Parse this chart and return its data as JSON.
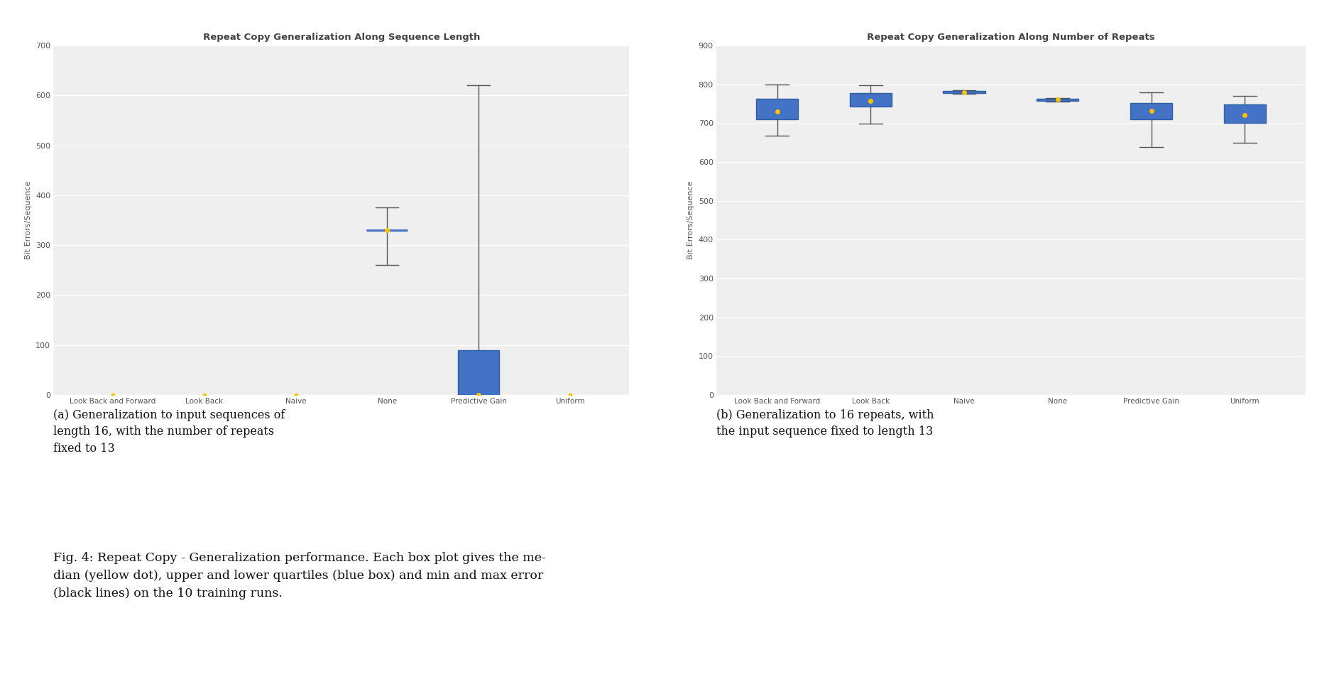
{
  "plot1": {
    "title": "Repeat Copy Generalization Along Sequence Length",
    "xlabel": "",
    "ylabel": "Bit Errors/Sequence",
    "ylim": [
      0,
      700
    ],
    "yticks": [
      0,
      100,
      200,
      300,
      400,
      500,
      600,
      700
    ],
    "categories": [
      "Look Back and Forward",
      "Look Back",
      "Naive",
      "None",
      "Predictive Gain",
      "Uniform"
    ],
    "median": [
      0,
      0,
      0,
      330,
      0,
      0
    ],
    "q1": [
      0,
      0,
      0,
      330,
      0,
      0
    ],
    "q3": [
      0,
      0,
      0,
      330,
      90,
      0
    ],
    "whisker_low": [
      0,
      0,
      0,
      260,
      0,
      0
    ],
    "whisker_high": [
      0,
      0,
      0,
      375,
      620,
      0
    ],
    "has_box": [
      false,
      false,
      false,
      false,
      true,
      false
    ],
    "has_whisker": [
      false,
      false,
      false,
      true,
      true,
      false
    ],
    "has_line": [
      false,
      false,
      false,
      true,
      false,
      false
    ],
    "all_zero": [
      true,
      true,
      true,
      false,
      false,
      true
    ]
  },
  "plot2": {
    "title": "Repeat Copy Generalization Along Number of Repeats",
    "xlabel": "",
    "ylabel": "Bit Errors/Sequence",
    "ylim": [
      0,
      900
    ],
    "yticks": [
      0,
      100,
      200,
      300,
      400,
      500,
      600,
      700,
      800,
      900
    ],
    "categories": [
      "Look Back and Forward",
      "Look Back",
      "Naive",
      "None",
      "Predictive Gain",
      "Uniform"
    ],
    "median": [
      730,
      758,
      780,
      760,
      732,
      720
    ],
    "q1": [
      710,
      742,
      778,
      758,
      710,
      700
    ],
    "q3": [
      762,
      778,
      782,
      762,
      752,
      748
    ],
    "whisker_low": [
      668,
      698,
      776,
      756,
      638,
      650
    ],
    "whisker_high": [
      800,
      798,
      784,
      764,
      780,
      770
    ],
    "has_box": [
      true,
      true,
      true,
      true,
      true,
      true
    ],
    "has_whisker": [
      true,
      true,
      true,
      true,
      true,
      true
    ],
    "has_line": [
      false,
      false,
      false,
      false,
      false,
      false
    ],
    "all_zero": [
      false,
      false,
      false,
      false,
      false,
      false
    ]
  },
  "box_color": "#4472c4",
  "box_edge_color": "#2e5fa3",
  "median_color": "#ffc000",
  "whisker_color": "#555555",
  "line_color": "#4472c4",
  "caption_a": "(a) Generalization to input sequences of\nlength 16, with the number of repeats\nfixed to 13",
  "caption_b": "(b) Generalization to 16 repeats, with\nthe input sequence fixed to length 13",
  "fig_caption": "Fig. 4: Repeat Copy - Generalization performance. Each box plot gives the me-\ndian (yellow dot), upper and lower quartiles (blue box) and min and max error\n(black lines) on the 10 training runs.",
  "background_color": "#ffffff",
  "plot_bg_color": "#efefef"
}
